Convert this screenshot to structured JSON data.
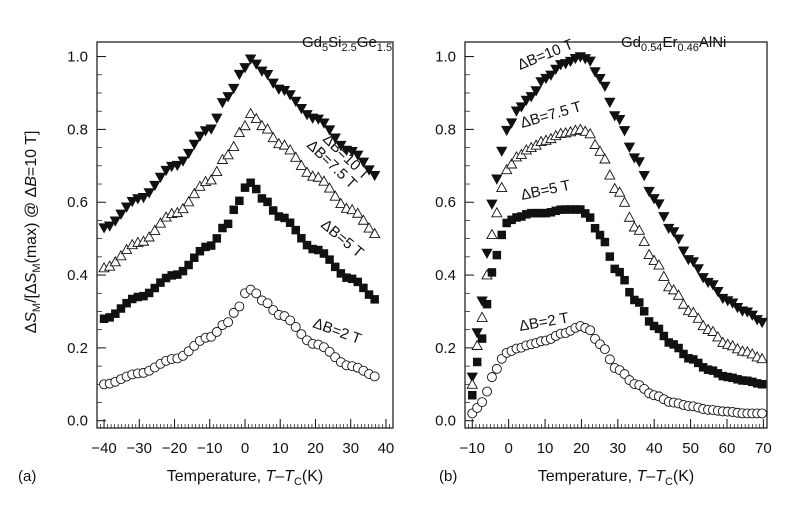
{
  "chart_data": [
    {
      "type": "scatter",
      "panel": "(a)",
      "material": {
        "base": [
          "Gd",
          "Si",
          "Ge"
        ],
        "subs": [
          "5",
          "2.5",
          "1.5"
        ]
      },
      "ylabel": "ΔS_M/[ΔS_M(max) @ ΔB=10 T]",
      "xlabel": "Temperature, T–T_C(K)",
      "xlim": [
        -42,
        42
      ],
      "ylim": [
        -0.02,
        1.04
      ],
      "x_ticks": [
        -40,
        -30,
        -20,
        -10,
        0,
        10,
        20,
        30,
        40
      ],
      "y_ticks": [
        0.0,
        0.2,
        0.4,
        0.6,
        0.8,
        1.0
      ],
      "x_tick_labels": [
        "−40",
        "−30",
        "−20",
        "−10",
        "0",
        "10",
        "20",
        "30",
        "40"
      ],
      "y_tick_labels": [
        "0.0",
        "0.2",
        "0.4",
        "0.6",
        "0.8",
        "1.0"
      ],
      "series": [
        {
          "name": "ΔB=10 T",
          "marker": "triangle-down-filled",
          "x": [
            -40,
            -30,
            -20,
            -10,
            -5,
            0,
            1,
            2,
            5,
            10,
            20,
            30,
            38
          ],
          "y": [
            0.53,
            0.61,
            0.7,
            0.8,
            0.89,
            0.97,
            1.0,
            0.99,
            0.96,
            0.91,
            0.83,
            0.74,
            0.67
          ]
        },
        {
          "name": "ΔB=7.5 T",
          "marker": "triangle-up-open",
          "x": [
            -40,
            -30,
            -20,
            -10,
            -5,
            0,
            1,
            2,
            5,
            10,
            20,
            30,
            38
          ],
          "y": [
            0.42,
            0.49,
            0.57,
            0.66,
            0.73,
            0.81,
            0.85,
            0.84,
            0.81,
            0.76,
            0.67,
            0.58,
            0.51
          ]
        },
        {
          "name": "ΔB=5 T",
          "marker": "square-filled",
          "x": [
            -40,
            -30,
            -20,
            -10,
            -5,
            -2,
            0,
            1,
            2,
            5,
            10,
            20,
            30,
            38
          ],
          "y": [
            0.28,
            0.34,
            0.4,
            0.48,
            0.54,
            0.6,
            0.64,
            0.66,
            0.65,
            0.61,
            0.56,
            0.47,
            0.39,
            0.33
          ]
        },
        {
          "name": "ΔB=2 T",
          "marker": "circle-open",
          "x": [
            -40,
            -30,
            -20,
            -10,
            -5,
            -2,
            0,
            1,
            2,
            5,
            10,
            20,
            30,
            38
          ],
          "y": [
            0.1,
            0.13,
            0.17,
            0.23,
            0.27,
            0.31,
            0.35,
            0.36,
            0.36,
            0.33,
            0.29,
            0.21,
            0.15,
            0.12
          ]
        }
      ]
    },
    {
      "type": "scatter",
      "panel": "(b)",
      "material": {
        "base": [
          "Gd",
          "Er",
          "AlNi"
        ],
        "subs": [
          "0.54",
          "0.46",
          ""
        ]
      },
      "ylabel": "",
      "xlabel": "Temperature, T–T_C(K)",
      "xlim": [
        -12,
        71
      ],
      "ylim": [
        -0.02,
        1.04
      ],
      "x_ticks": [
        -10,
        0,
        10,
        20,
        30,
        40,
        50,
        60,
        70
      ],
      "y_ticks": [
        0.0,
        0.2,
        0.4,
        0.6,
        0.8,
        1.0
      ],
      "x_tick_labels": [
        "−10",
        "0",
        "10",
        "20",
        "30",
        "40",
        "50",
        "60",
        "70"
      ],
      "y_tick_labels": [
        "0.0",
        "0.2",
        "0.4",
        "0.6",
        "0.8",
        "1.0"
      ],
      "series": [
        {
          "name": "ΔB=10 T",
          "marker": "triangle-down-filled",
          "x": [
            -10,
            -8,
            -6,
            -4,
            -2,
            0,
            3,
            6,
            10,
            15,
            20,
            22,
            25,
            30,
            35,
            40,
            45,
            50,
            55,
            60,
            65,
            70
          ],
          "y": [
            0.12,
            0.28,
            0.46,
            0.63,
            0.74,
            0.81,
            0.86,
            0.89,
            0.94,
            0.98,
            1.0,
            0.99,
            0.94,
            0.83,
            0.72,
            0.61,
            0.52,
            0.44,
            0.38,
            0.33,
            0.3,
            0.27
          ]
        },
        {
          "name": "ΔB=7.5 T",
          "marker": "triangle-up-open",
          "x": [
            -10,
            -8,
            -6,
            -4,
            -2,
            0,
            3,
            6,
            10,
            15,
            20,
            22,
            25,
            30,
            35,
            40,
            45,
            50,
            55,
            60,
            65,
            70
          ],
          "y": [
            0.1,
            0.24,
            0.4,
            0.54,
            0.64,
            0.7,
            0.73,
            0.75,
            0.77,
            0.79,
            0.8,
            0.79,
            0.74,
            0.63,
            0.53,
            0.44,
            0.36,
            0.3,
            0.25,
            0.21,
            0.19,
            0.17
          ]
        },
        {
          "name": "ΔB=5 T",
          "marker": "square-filled",
          "x": [
            -10,
            -8,
            -6,
            -4,
            -2,
            0,
            3,
            6,
            10,
            15,
            20,
            22,
            25,
            30,
            35,
            40,
            45,
            50,
            55,
            60,
            65,
            70
          ],
          "y": [
            0.07,
            0.19,
            0.32,
            0.43,
            0.51,
            0.55,
            0.56,
            0.57,
            0.57,
            0.58,
            0.58,
            0.56,
            0.51,
            0.41,
            0.33,
            0.26,
            0.21,
            0.17,
            0.14,
            0.12,
            0.11,
            0.1
          ]
        },
        {
          "name": "ΔB=2 T",
          "marker": "circle-open",
          "x": [
            -10,
            -8,
            -6,
            -4,
            -2,
            0,
            3,
            6,
            10,
            15,
            20,
            22,
            25,
            30,
            35,
            40,
            45,
            50,
            55,
            60,
            65,
            70
          ],
          "y": [
            0.02,
            0.04,
            0.08,
            0.13,
            0.17,
            0.19,
            0.2,
            0.21,
            0.22,
            0.24,
            0.26,
            0.25,
            0.21,
            0.14,
            0.1,
            0.07,
            0.05,
            0.04,
            0.03,
            0.025,
            0.02,
            0.02
          ]
        }
      ]
    }
  ]
}
